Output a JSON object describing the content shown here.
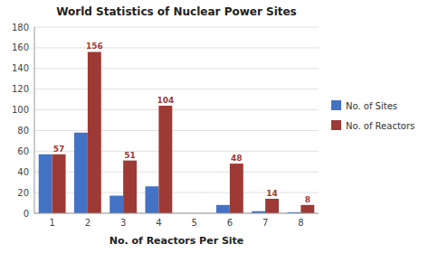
{
  "chart_data": {
    "type": "bar",
    "title": "World Statistics of Nuclear Power Sites",
    "x_label": "No. of Reactors Per Site",
    "categories": [
      1,
      2,
      3,
      4,
      5,
      6,
      7,
      8
    ],
    "series": [
      {
        "name": "No. of Sites",
        "color": "#4472C4",
        "values": [
          57,
          78,
          17,
          26,
          0,
          8,
          2,
          1
        ]
      },
      {
        "name": "No. of Reactors",
        "color": "#9E3A35",
        "values": [
          57,
          156,
          51,
          104,
          0,
          48,
          14,
          8
        ],
        "data_labels": true
      }
    ],
    "ylim": [
      0,
      180
    ],
    "yticks": [
      0,
      20,
      40,
      60,
      80,
      100,
      120,
      140,
      160,
      180
    ],
    "grid": true,
    "legend": "right"
  }
}
